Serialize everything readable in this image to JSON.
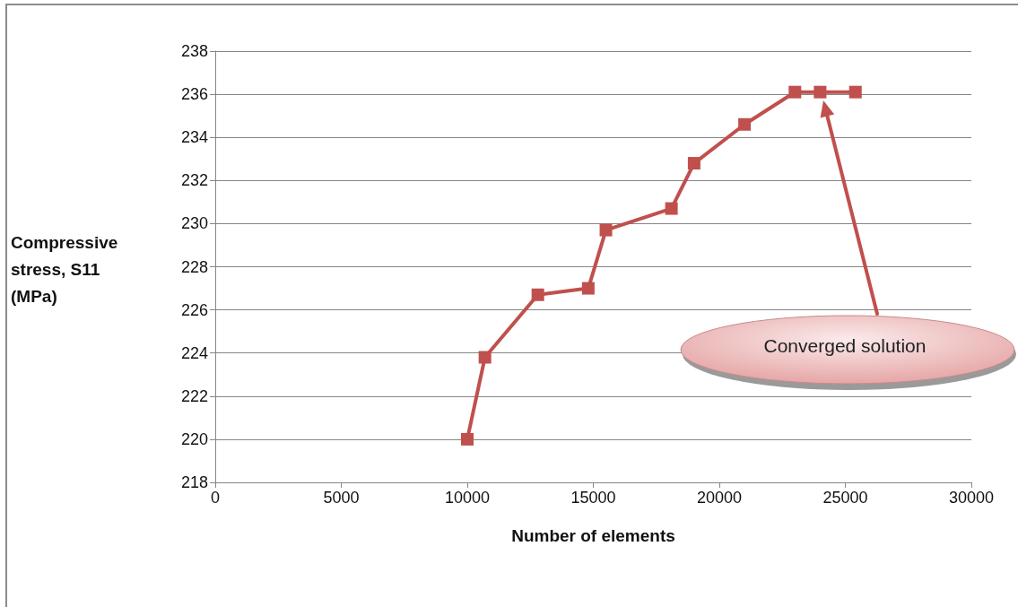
{
  "chart_data": {
    "type": "line",
    "xlabel": "Number of elements",
    "ylabel": "Compressive stress, S11 (MPa)",
    "x": [
      10000,
      10700,
      12800,
      14800,
      15500,
      18100,
      19000,
      21000,
      23000,
      24000,
      25400
    ],
    "series": [
      {
        "color": "#c0504d",
        "values": [
          220,
          223.8,
          226.7,
          227.0,
          229.7,
          230.7,
          232.8,
          234.6,
          236.1,
          236.1,
          236.1
        ]
      }
    ],
    "xlim": [
      0,
      30000
    ],
    "xticks": [
      0,
      5000,
      10000,
      15000,
      20000,
      25000,
      30000
    ],
    "ylim": [
      218,
      238
    ],
    "yticks": [
      218,
      220,
      222,
      224,
      226,
      228,
      230,
      232,
      234,
      236,
      238
    ],
    "grid": "y",
    "marker": "square",
    "line_style": "solid",
    "annotations": [
      "Converged solution"
    ]
  }
}
